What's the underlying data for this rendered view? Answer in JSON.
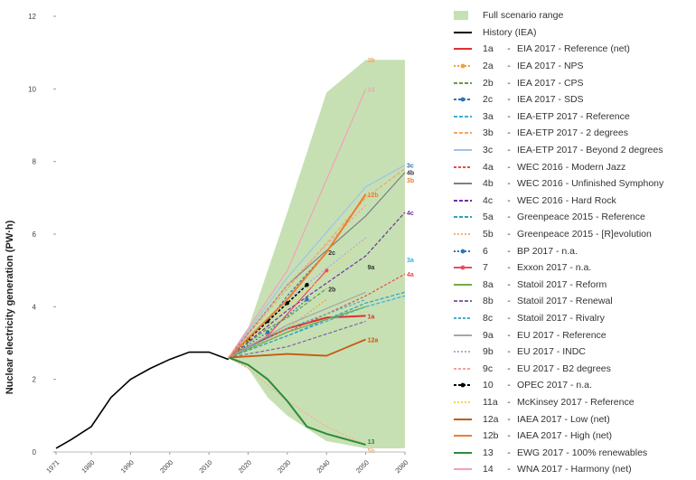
{
  "chart_data": {
    "type": "line",
    "ylabel": "Nuclear electricity generation (PW·h)",
    "xlabel": "",
    "xlim": [
      1971,
      2060
    ],
    "ylim": [
      0,
      12
    ],
    "x_ticks": [
      "1971",
      "1980",
      "1990",
      "2000",
      "2010",
      "2020",
      "2030",
      "2040",
      "2050",
      "2060"
    ],
    "y_ticks": [
      "0",
      "2",
      "4",
      "6",
      "8",
      "10",
      "12"
    ],
    "range": {
      "name": "Full scenario range",
      "color": "#c6e0b4",
      "upper": [
        [
          2015,
          2.6
        ],
        [
          2020,
          3.4
        ],
        [
          2030,
          6.6
        ],
        [
          2040,
          9.9
        ],
        [
          2050,
          10.8
        ],
        [
          2060,
          10.8
        ]
      ],
      "lower": [
        [
          2015,
          2.6
        ],
        [
          2020,
          2.3
        ],
        [
          2025,
          1.5
        ],
        [
          2030,
          1.0
        ],
        [
          2040,
          0.3
        ],
        [
          2050,
          0.1
        ],
        [
          2060,
          0.1
        ]
      ]
    },
    "history": {
      "name": "History (IEA)",
      "color": "#000000",
      "x": [
        1971,
        1975,
        1980,
        1985,
        1990,
        1995,
        2000,
        2005,
        2010,
        2015
      ],
      "y": [
        0.1,
        0.35,
        0.7,
        1.5,
        2.0,
        2.3,
        2.55,
        2.75,
        2.75,
        2.55
      ]
    },
    "legend": [
      {
        "code": "",
        "label": "Full scenario range",
        "type": "swatch",
        "color": "#c6e0b4"
      },
      {
        "code": "",
        "label": "History (IEA)",
        "type": "line",
        "color": "#000000",
        "dash": ""
      },
      {
        "code": "1a",
        "label": "EIA 2017 - Reference (net)",
        "type": "line",
        "color": "#e03030",
        "dash": ""
      },
      {
        "code": "2a",
        "label": "IEA 2017 - NPS",
        "type": "line",
        "color": "#f0a040",
        "dash": "2,2",
        "marker": true
      },
      {
        "code": "2b",
        "label": "IEA 2017 - CPS",
        "type": "line",
        "color": "#6a9a3a",
        "dash": "4,2"
      },
      {
        "code": "2c",
        "label": "IEA 2017 - SDS",
        "type": "line",
        "color": "#2e75b6",
        "dash": "3,2",
        "marker": true
      },
      {
        "code": "3a",
        "label": "IEA-ETP 2017 - Reference",
        "type": "line",
        "color": "#3aaed8",
        "dash": "4,2"
      },
      {
        "code": "3b",
        "label": "IEA-ETP 2017 - 2 degrees",
        "type": "line",
        "color": "#f4a460",
        "dash": "4,2"
      },
      {
        "code": "3c",
        "label": "IEA-ETP 2017 - Beyond 2 degrees",
        "type": "line",
        "color": "#9dc3e6",
        "dash": ""
      },
      {
        "code": "4a",
        "label": "WEC 2016 - Modern Jazz",
        "type": "line",
        "color": "#e84a4a",
        "dash": "3,2"
      },
      {
        "code": "4b",
        "label": "WEC 2016 - Unfinished Symphony",
        "type": "line",
        "color": "#7f7f7f",
        "dash": ""
      },
      {
        "code": "4c",
        "label": "WEC 2016 - Hard Rock",
        "type": "line",
        "color": "#7030a0",
        "dash": "4,2"
      },
      {
        "code": "5a",
        "label": "Greenpeace 2015 - Reference",
        "type": "line",
        "color": "#30a0c0",
        "dash": "4,2"
      },
      {
        "code": "5b",
        "label": "Greenpeace 2015 - [R]evolution",
        "type": "line",
        "color": "#f4b183",
        "dash": "2,2"
      },
      {
        "code": "6",
        "label": "BP 2017 - n.a.",
        "type": "line",
        "color": "#2e75b6",
        "dash": "2,2",
        "marker": true
      },
      {
        "code": "7",
        "label": "Exxon 2017 - n.a.",
        "type": "line",
        "color": "#e84a6a",
        "dash": "",
        "marker": true
      },
      {
        "code": "8a",
        "label": "Statoil 2017 - Reform",
        "type": "line",
        "color": "#70ad47",
        "dash": ""
      },
      {
        "code": "8b",
        "label": "Statoil 2017 - Renewal",
        "type": "line",
        "color": "#8064a2",
        "dash": "4,2"
      },
      {
        "code": "8c",
        "label": "Statoil 2017 - Rivalry",
        "type": "line",
        "color": "#4bacc6",
        "dash": "3,2"
      },
      {
        "code": "9a",
        "label": "EU 2017 - Reference",
        "type": "line",
        "color": "#a6a6a6",
        "dash": ""
      },
      {
        "code": "9b",
        "label": "EU 2017 - INDC",
        "type": "line",
        "color": "#b4a7d6",
        "dash": "2,2"
      },
      {
        "code": "9c",
        "label": "EU 2017 - B2 degrees",
        "type": "line",
        "color": "#f4a0a0",
        "dash": "3,2"
      },
      {
        "code": "10",
        "label": "OPEC 2017 - n.a.",
        "type": "line",
        "color": "#000000",
        "dash": "3,2",
        "marker": true
      },
      {
        "code": "11a",
        "label": "McKinsey 2017 - Reference",
        "type": "line",
        "color": "#f2d060",
        "dash": "2,2"
      },
      {
        "code": "12a",
        "label": "IAEA 2017 - Low (net)",
        "type": "line",
        "color": "#c55a11",
        "dash": ""
      },
      {
        "code": "12b",
        "label": "IAEA 2017 - High (net)",
        "type": "line",
        "color": "#ed7d31",
        "dash": ""
      },
      {
        "code": "13",
        "label": "EWG 2017 - 100% renewables",
        "type": "line",
        "color": "#2e8b3a",
        "dash": ""
      },
      {
        "code": "14",
        "label": "WNA 2017 - Harmony (net)",
        "type": "line",
        "color": "#f4a0b8",
        "dash": ""
      }
    ],
    "series": [
      {
        "code": "1a",
        "color": "#e03030",
        "dash": "",
        "width": 2,
        "x": [
          2015,
          2020,
          2030,
          2040,
          2050
        ],
        "y": [
          2.6,
          2.9,
          3.4,
          3.7,
          3.75
        ]
      },
      {
        "code": "2a",
        "color": "#f0a040",
        "dash": "2,2",
        "width": 1.2,
        "x": [
          2015,
          2025,
          2030,
          2040
        ],
        "y": [
          2.6,
          3.2,
          3.4,
          4.2
        ]
      },
      {
        "code": "2b",
        "color": "#6a9a3a",
        "dash": "4,2",
        "width": 1.2,
        "x": [
          2015,
          2025,
          2030,
          2040
        ],
        "y": [
          2.6,
          3.4,
          3.7,
          4.5
        ]
      },
      {
        "code": "2c",
        "color": "#2e75b6",
        "dash": "3,2",
        "width": 1.2,
        "x": [
          2015,
          2025,
          2030,
          2040
        ],
        "y": [
          2.6,
          3.6,
          4.3,
          5.5
        ]
      },
      {
        "code": "3a",
        "color": "#3aaed8",
        "dash": "4,2",
        "width": 1.2,
        "x": [
          2015,
          2030,
          2050,
          2060
        ],
        "y": [
          2.6,
          3.2,
          4.0,
          4.3
        ]
      },
      {
        "code": "3b",
        "color": "#f4a460",
        "dash": "4,2",
        "width": 1.2,
        "x": [
          2015,
          2030,
          2050,
          2060
        ],
        "y": [
          2.6,
          4.5,
          7.0,
          7.8
        ]
      },
      {
        "code": "3c",
        "color": "#9dc3e6",
        "dash": "",
        "width": 1.2,
        "x": [
          2015,
          2030,
          2050,
          2060
        ],
        "y": [
          2.6,
          4.8,
          7.3,
          7.9
        ]
      },
      {
        "code": "4a",
        "color": "#e84a4a",
        "dash": "3,2",
        "width": 1.2,
        "x": [
          2015,
          2030,
          2050,
          2060
        ],
        "y": [
          2.6,
          3.3,
          4.3,
          4.9
        ]
      },
      {
        "code": "4b",
        "color": "#7f7f7f",
        "dash": "",
        "width": 1.2,
        "x": [
          2015,
          2030,
          2050,
          2060
        ],
        "y": [
          2.6,
          4.6,
          6.5,
          7.7
        ]
      },
      {
        "code": "4c",
        "color": "#7030a0",
        "dash": "4,2",
        "width": 1.2,
        "x": [
          2015,
          2030,
          2050,
          2060
        ],
        "y": [
          2.6,
          3.9,
          5.4,
          6.6
        ]
      },
      {
        "code": "5a",
        "color": "#30a0c0",
        "dash": "4,2",
        "width": 1.2,
        "x": [
          2015,
          2030,
          2050,
          2060
        ],
        "y": [
          2.6,
          3.2,
          4.1,
          4.4
        ]
      },
      {
        "code": "5b",
        "color": "#f4b183",
        "dash": "2,2",
        "width": 1.2,
        "x": [
          2015,
          2020,
          2030,
          2040,
          2050
        ],
        "y": [
          2.6,
          2.3,
          1.4,
          0.7,
          0.2
        ]
      },
      {
        "code": "6",
        "color": "#2e75b6",
        "dash": "2,2",
        "width": 1.2,
        "marker": true,
        "x": [
          2015,
          2025,
          2035
        ],
        "y": [
          2.6,
          3.3,
          4.2
        ]
      },
      {
        "code": "7",
        "color": "#e84a6a",
        "dash": "",
        "width": 1.2,
        "marker": true,
        "x": [
          2015,
          2025,
          2040
        ],
        "y": [
          2.6,
          3.2,
          5.0
        ]
      },
      {
        "code": "8a",
        "color": "#70ad47",
        "dash": "",
        "width": 1.2,
        "x": [
          2015,
          2030,
          2050
        ],
        "y": [
          2.6,
          3.3,
          4.0
        ]
      },
      {
        "code": "8b",
        "color": "#8064a2",
        "dash": "4,2",
        "width": 1.2,
        "x": [
          2015,
          2030,
          2050
        ],
        "y": [
          2.6,
          2.9,
          3.6
        ]
      },
      {
        "code": "8c",
        "color": "#4bacc6",
        "dash": "3,2",
        "width": 1.2,
        "x": [
          2015,
          2030,
          2050
        ],
        "y": [
          2.6,
          3.4,
          4.2
        ]
      },
      {
        "code": "9a",
        "color": "#a6a6a6",
        "dash": "",
        "width": 1.2,
        "x": [
          2015,
          2030,
          2050
        ],
        "y": [
          2.6,
          3.5,
          4.4
        ]
      },
      {
        "code": "9b",
        "color": "#b4a7d6",
        "dash": "2,2",
        "width": 1.2,
        "x": [
          2015,
          2030,
          2050
        ],
        "y": [
          2.6,
          4.2,
          5.9
        ]
      },
      {
        "code": "9c",
        "color": "#f4a0a0",
        "dash": "3,2",
        "width": 1.2,
        "x": [
          2015,
          2030,
          2050
        ],
        "y": [
          2.6,
          4.6,
          6.8
        ]
      },
      {
        "code": "10",
        "color": "#000000",
        "dash": "3,2",
        "width": 1.6,
        "marker": true,
        "x": [
          2015,
          2020,
          2025,
          2030,
          2035
        ],
        "y": [
          2.6,
          3.1,
          3.6,
          4.1,
          4.6
        ]
      },
      {
        "code": "11a",
        "color": "#f2d060",
        "dash": "2,2",
        "width": 1.2,
        "x": [
          2015,
          2030,
          2050
        ],
        "y": [
          2.6,
          4.0,
          5.8
        ]
      },
      {
        "code": "12a",
        "color": "#c55a11",
        "dash": "",
        "width": 1.8,
        "x": [
          2015,
          2030,
          2040,
          2050
        ],
        "y": [
          2.6,
          2.7,
          2.65,
          3.1
        ]
      },
      {
        "code": "12b",
        "color": "#ed7d31",
        "dash": "",
        "width": 2,
        "x": [
          2015,
          2030,
          2040,
          2050
        ],
        "y": [
          2.6,
          4.2,
          5.5,
          7.1
        ]
      },
      {
        "code": "13",
        "color": "#2e8b3a",
        "dash": "",
        "width": 2,
        "x": [
          2015,
          2020,
          2025,
          2030,
          2035,
          2040,
          2045,
          2050
        ],
        "y": [
          2.6,
          2.4,
          2.0,
          1.4,
          0.7,
          0.5,
          0.35,
          0.2
        ]
      },
      {
        "code": "14",
        "color": "#f4a0b8",
        "dash": "",
        "width": 1.2,
        "x": [
          2015,
          2030,
          2040,
          2050
        ],
        "y": [
          2.6,
          5.0,
          7.5,
          10.0
        ]
      }
    ],
    "end_labels": [
      {
        "text": "3b",
        "x": 2050,
        "y": 10.8,
        "color": "#f4a460"
      },
      {
        "text": "14",
        "x": 2050,
        "y": 10.0,
        "color": "#f4a0b8"
      },
      {
        "text": "3c",
        "x": 2060,
        "y": 7.9,
        "color": "#2e75b6"
      },
      {
        "text": "4b",
        "x": 2060,
        "y": 7.7,
        "color": "#333333"
      },
      {
        "text": "3b",
        "x": 2060,
        "y": 7.5,
        "color": "#ed7d31"
      },
      {
        "text": "12b",
        "x": 2050,
        "y": 7.1,
        "color": "#ed7d31"
      },
      {
        "text": "4c",
        "x": 2060,
        "y": 6.6,
        "color": "#7030a0"
      },
      {
        "text": "2c",
        "x": 2040,
        "y": 5.5,
        "color": "#333333"
      },
      {
        "text": "9a",
        "x": 2050,
        "y": 5.1,
        "color": "#333333"
      },
      {
        "text": "3a",
        "x": 2060,
        "y": 5.3,
        "color": "#3aaed8"
      },
      {
        "text": "4a",
        "x": 2060,
        "y": 4.9,
        "color": "#e84a4a"
      },
      {
        "text": "2b",
        "x": 2040,
        "y": 4.5,
        "color": "#333333"
      },
      {
        "text": "1a",
        "x": 2050,
        "y": 3.75,
        "color": "#e03030"
      },
      {
        "text": "12a",
        "x": 2050,
        "y": 3.1,
        "color": "#c55a11"
      },
      {
        "text": "13",
        "x": 2050,
        "y": 0.3,
        "color": "#2e8b3a"
      },
      {
        "text": "5b",
        "x": 2050,
        "y": 0.05,
        "color": "#f4b183"
      }
    ]
  }
}
